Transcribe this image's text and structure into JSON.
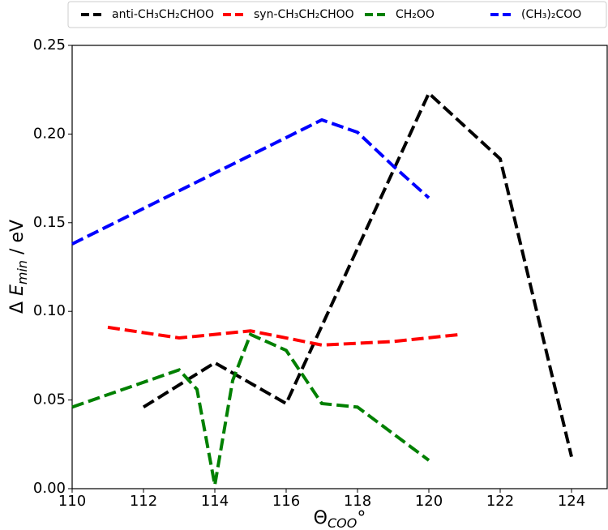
{
  "chart_data": {
    "type": "line",
    "xlabel": {
      "symbol": "Θ",
      "sub": "COO",
      "suffix": "°"
    },
    "ylabel": {
      "prefix": "Δ ",
      "symbol": "E",
      "sub": "min",
      "suffix": " / eV"
    },
    "xlim": [
      110,
      125
    ],
    "xticks": [
      110,
      112,
      114,
      116,
      118,
      120,
      122,
      124
    ],
    "ylim": [
      0,
      0.25
    ],
    "yticks": [
      {
        "value": 0,
        "label": "0.00"
      },
      {
        "value": 0.05,
        "label": "0.05"
      },
      {
        "value": 0.1,
        "label": "0.10"
      },
      {
        "value": 0.15,
        "label": "0.15"
      },
      {
        "value": 0.2,
        "label": "0.20"
      },
      {
        "value": 0.25,
        "label": "0.25"
      }
    ],
    "legend_position": "top",
    "series": [
      {
        "name": "anti-CH₃CH₂CHOO",
        "color": "#000000",
        "x": [
          112,
          114,
          116,
          120,
          122,
          124
        ],
        "values": [
          0.046,
          0.071,
          0.048,
          0.223,
          0.186,
          0.018
        ]
      },
      {
        "name": "syn-CH₃CH₂CHOO",
        "color": "#ff0000",
        "x": [
          111,
          113,
          115,
          117,
          119,
          120.9
        ],
        "values": [
          0.091,
          0.085,
          0.089,
          0.081,
          0.083,
          0.087
        ]
      },
      {
        "name": "CH₂OO",
        "color": "#008000",
        "x": [
          110,
          113,
          113.5,
          114,
          114.5,
          115,
          116,
          117,
          118,
          120
        ],
        "values": [
          0.046,
          0.067,
          0.056,
          0.002,
          0.061,
          0.087,
          0.078,
          0.048,
          0.046,
          0.016
        ]
      },
      {
        "name": "(CH₃)₂COO",
        "color": "#0000ff",
        "x": [
          110,
          117,
          118,
          119,
          120
        ],
        "values": [
          0.138,
          0.208,
          0.201,
          0.182,
          0.164
        ]
      }
    ]
  }
}
